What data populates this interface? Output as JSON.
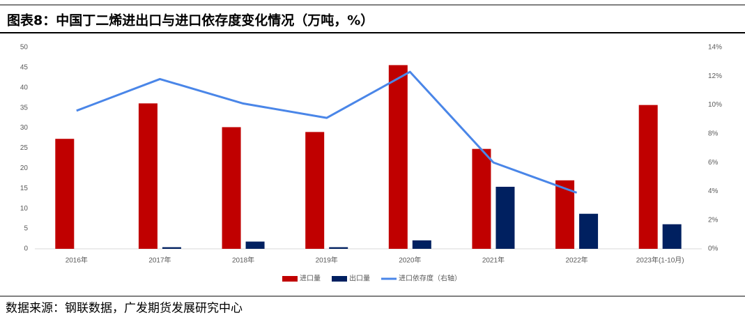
{
  "title": "图表8：中国丁二烯进出口与进口依存度变化情况（万吨，%）",
  "source": "数据来源：钢联数据，广发期货发展研究中心",
  "chart_data": {
    "type": "bar-line",
    "categories": [
      "2016年",
      "2017年",
      "2018年",
      "2019年",
      "2020年",
      "2021年",
      "2022年",
      "2023年(1-10月)"
    ],
    "series": [
      {
        "name": "进口量",
        "color": "#c00000",
        "type": "bar",
        "values": [
          27.3,
          36.1,
          30.2,
          29.0,
          45.6,
          24.8,
          17.0,
          35.7
        ]
      },
      {
        "name": "出口量",
        "color": "#002060",
        "type": "bar",
        "values": [
          0,
          0.4,
          1.8,
          0.4,
          2.1,
          15.4,
          8.7,
          6.1
        ]
      },
      {
        "name": "进口依存度（右轴）",
        "color": "#4a86e8",
        "type": "line",
        "axis": "y2",
        "values": [
          9.6,
          11.8,
          10.1,
          9.1,
          12.3,
          6.0,
          3.9,
          null
        ]
      }
    ],
    "ylim": [
      0,
      50
    ],
    "yticks": [
      0,
      5,
      10,
      15,
      20,
      25,
      30,
      35,
      40,
      45,
      50
    ],
    "y2lim": [
      0,
      14
    ],
    "y2ticks": [
      {
        "value": 0,
        "label": "0%"
      },
      {
        "value": 2,
        "label": "2%"
      },
      {
        "value": 4,
        "label": "4%"
      },
      {
        "value": 6,
        "label": "6%"
      },
      {
        "value": 8,
        "label": "8%"
      },
      {
        "value": 10,
        "label": "10%"
      },
      {
        "value": 12,
        "label": "12%"
      },
      {
        "value": 14,
        "label": "14%"
      }
    ],
    "legend": "bottom"
  }
}
